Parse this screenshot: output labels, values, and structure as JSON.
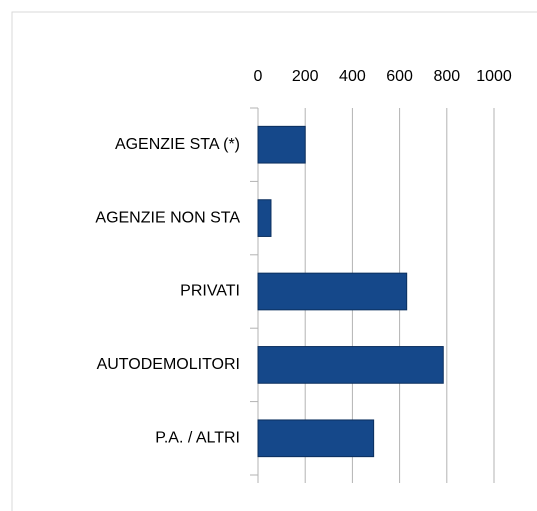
{
  "chart_data": {
    "type": "bar",
    "orientation": "horizontal",
    "categories": [
      "AGENZIE STA (*)",
      "AGENZIE NON STA",
      "PRIVATI",
      "AUTODEMOLITORI",
      "P.A. / ALTRI"
    ],
    "values": [
      200,
      55,
      630,
      785,
      490
    ],
    "color": "#15488a",
    "xlim": [
      0,
      1000
    ],
    "xticks": [
      0,
      200,
      400,
      600,
      800,
      1000
    ],
    "grid": true
  }
}
